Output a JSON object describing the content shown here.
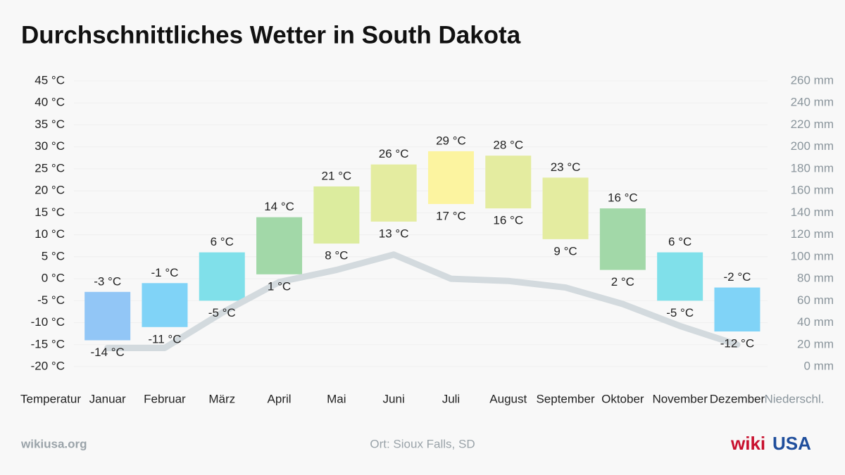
{
  "chart_data": {
    "type": "bar",
    "title": "Durchschnittliches Wetter in South Dakota",
    "categories": [
      "Januar",
      "Februar",
      "März",
      "April",
      "Mai",
      "Juni",
      "Juli",
      "August",
      "September",
      "Oktober",
      "November",
      "Dezember"
    ],
    "y_label": "Temperatur",
    "y2_label": "Niederschl.",
    "ylim": [
      -20,
      45
    ],
    "yticks": [
      {
        "value": -20,
        "label": "-20 °C"
      },
      {
        "value": -15,
        "label": "-15 °C"
      },
      {
        "value": -10,
        "label": "-10 °C"
      },
      {
        "value": -5,
        "label": "-5 °C"
      },
      {
        "value": 0,
        "label": "0 °C"
      },
      {
        "value": 5,
        "label": "5 °C"
      },
      {
        "value": 10,
        "label": "10 °C"
      },
      {
        "value": 15,
        "label": "15 °C"
      },
      {
        "value": 20,
        "label": "20 °C"
      },
      {
        "value": 25,
        "label": "25 °C"
      },
      {
        "value": 30,
        "label": "30 °C"
      },
      {
        "value": 35,
        "label": "35 °C"
      },
      {
        "value": 40,
        "label": "40 °C"
      },
      {
        "value": 45,
        "label": "45 °C"
      }
    ],
    "y2lim": [
      0,
      260
    ],
    "y2ticks": [
      {
        "value": 0,
        "label": "0 mm"
      },
      {
        "value": 20,
        "label": "20 mm"
      },
      {
        "value": 40,
        "label": "40 mm"
      },
      {
        "value": 60,
        "label": "60 mm"
      },
      {
        "value": 80,
        "label": "80 mm"
      },
      {
        "value": 100,
        "label": "100 mm"
      },
      {
        "value": 120,
        "label": "120 mm"
      },
      {
        "value": 140,
        "label": "140 mm"
      },
      {
        "value": 160,
        "label": "160 mm"
      },
      {
        "value": 180,
        "label": "180 mm"
      },
      {
        "value": 200,
        "label": "200 mm"
      },
      {
        "value": 220,
        "label": "220 mm"
      },
      {
        "value": 240,
        "label": "240 mm"
      },
      {
        "value": 260,
        "label": "260 mm"
      }
    ],
    "grid": true,
    "series": [
      {
        "type": "range",
        "colors": [
          "#92c6f6",
          "#80d3f7",
          "#80e0ea",
          "#a2d8a8",
          "#dcec9e",
          "#e4eca0",
          "#fcf4a0",
          "#e4eca0",
          "#e4eca0",
          "#a2d8a8",
          "#80e0ea",
          "#80d3f7"
        ],
        "high": [
          -3,
          -1,
          6,
          14,
          21,
          26,
          29,
          28,
          23,
          16,
          6,
          -2
        ],
        "high_labels": [
          "-3 °C",
          "-1 °C",
          "6 °C",
          "14 °C",
          "21 °C",
          "26 °C",
          "29 °C",
          "28 °C",
          "23 °C",
          "16 °C",
          "6 °C",
          "-2 °C"
        ],
        "low": [
          -14,
          -11,
          -5,
          1,
          8,
          13,
          17,
          16,
          9,
          2,
          -5,
          -12
        ],
        "low_labels": [
          "-14 °C",
          "-11 °C",
          "-5 °C",
          "1 °C",
          "8 °C",
          "13 °C",
          "17 °C",
          "16 °C",
          "9 °C",
          "2 °C",
          "-5 °C",
          "-12 °C"
        ]
      },
      {
        "type": "line",
        "axis": "y2",
        "color": "#d3dade",
        "values": [
          17,
          17,
          49,
          77,
          88,
          102,
          80,
          78,
          72,
          57,
          37,
          20
        ]
      }
    ]
  },
  "footer": {
    "site": "wikiusa.org",
    "location": "Ort: Sioux Falls, SD",
    "logo_wiki": "wiki",
    "logo_usa": "USA"
  }
}
